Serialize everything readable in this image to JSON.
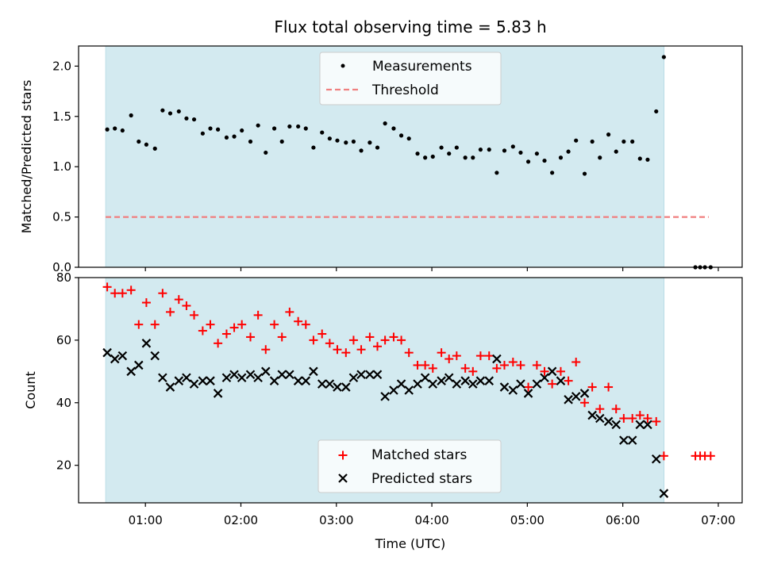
{
  "colors": {
    "shade": "#d3eaf0",
    "threshold": "#f08080",
    "matched": "#ff0000",
    "predicted": "#000000",
    "measurement": "#000000"
  },
  "chart_data": [
    {
      "type": "scatter",
      "title": "Flux total observing time = 5.83 h",
      "xlabel": "",
      "ylabel": "Matched/Predicted stars",
      "x_unit": "hours UTC",
      "xlim": [
        0.3,
        7.25
      ],
      "ylim": [
        0,
        2.2
      ],
      "yticks": [
        "0.0",
        "0.5",
        "1.0",
        "1.5",
        "2.0"
      ],
      "yticks_values": [
        0,
        0.5,
        1.0,
        1.5,
        2.0
      ],
      "shaded_span": [
        0.583,
        6.433
      ],
      "legend": {
        "location": "top-center",
        "entries": [
          "Measurements",
          "Threshold"
        ]
      },
      "threshold": {
        "name": "Threshold",
        "y": 0.5,
        "x_range": [
          0.583,
          6.9
        ]
      },
      "series": [
        {
          "name": "Measurements",
          "points": [
            [
              0.6,
              1.37
            ],
            [
              0.68,
              1.38
            ],
            [
              0.76,
              1.36
            ],
            [
              0.85,
              1.51
            ],
            [
              0.93,
              1.25
            ],
            [
              1.01,
              1.22
            ],
            [
              1.1,
              1.18
            ],
            [
              1.18,
              1.56
            ],
            [
              1.26,
              1.53
            ],
            [
              1.35,
              1.55
            ],
            [
              1.43,
              1.48
            ],
            [
              1.51,
              1.47
            ],
            [
              1.6,
              1.33
            ],
            [
              1.68,
              1.38
            ],
            [
              1.76,
              1.37
            ],
            [
              1.85,
              1.29
            ],
            [
              1.93,
              1.3
            ],
            [
              2.01,
              1.36
            ],
            [
              2.1,
              1.25
            ],
            [
              2.18,
              1.41
            ],
            [
              2.26,
              1.14
            ],
            [
              2.35,
              1.38
            ],
            [
              2.43,
              1.25
            ],
            [
              2.51,
              1.4
            ],
            [
              2.6,
              1.4
            ],
            [
              2.68,
              1.38
            ],
            [
              2.76,
              1.19
            ],
            [
              2.85,
              1.34
            ],
            [
              2.93,
              1.28
            ],
            [
              3.01,
              1.26
            ],
            [
              3.1,
              1.24
            ],
            [
              3.18,
              1.25
            ],
            [
              3.26,
              1.16
            ],
            [
              3.35,
              1.24
            ],
            [
              3.43,
              1.19
            ],
            [
              3.51,
              1.43
            ],
            [
              3.6,
              1.38
            ],
            [
              3.68,
              1.31
            ],
            [
              3.76,
              1.28
            ],
            [
              3.85,
              1.13
            ],
            [
              3.93,
              1.09
            ],
            [
              4.01,
              1.1
            ],
            [
              4.1,
              1.19
            ],
            [
              4.18,
              1.13
            ],
            [
              4.26,
              1.19
            ],
            [
              4.35,
              1.09
            ],
            [
              4.43,
              1.09
            ],
            [
              4.51,
              1.17
            ],
            [
              4.6,
              1.17
            ],
            [
              4.68,
              0.94
            ],
            [
              4.76,
              1.16
            ],
            [
              4.85,
              1.2
            ],
            [
              4.93,
              1.14
            ],
            [
              5.01,
              1.05
            ],
            [
              5.1,
              1.13
            ],
            [
              5.18,
              1.06
            ],
            [
              5.26,
              0.94
            ],
            [
              5.35,
              1.09
            ],
            [
              5.43,
              1.15
            ],
            [
              5.51,
              1.26
            ],
            [
              5.6,
              0.93
            ],
            [
              5.68,
              1.25
            ],
            [
              5.76,
              1.09
            ],
            [
              5.85,
              1.32
            ],
            [
              5.93,
              1.15
            ],
            [
              6.01,
              1.25
            ],
            [
              6.1,
              1.25
            ],
            [
              6.18,
              1.08
            ],
            [
              6.26,
              1.07
            ],
            [
              6.35,
              1.55
            ],
            [
              6.43,
              2.09
            ],
            [
              6.76,
              0.0
            ],
            [
              6.81,
              0.0
            ],
            [
              6.86,
              0.0
            ],
            [
              6.92,
              0.0
            ]
          ]
        }
      ]
    },
    {
      "type": "scatter",
      "title": "",
      "xlabel": "Time (UTC)",
      "ylabel": "Count",
      "x_unit": "hours UTC",
      "xlim": [
        0.3,
        7.25
      ],
      "ylim": [
        8,
        80
      ],
      "yticks": [
        "20",
        "40",
        "60",
        "80"
      ],
      "yticks_values": [
        20,
        40,
        60,
        80
      ],
      "xticks": [
        "01:00",
        "02:00",
        "03:00",
        "04:00",
        "05:00",
        "06:00",
        "07:00"
      ],
      "xticks_values": [
        1,
        2,
        3,
        4,
        5,
        6,
        7
      ],
      "shaded_span": [
        0.583,
        6.433
      ],
      "legend": {
        "location": "bottom-center",
        "entries": [
          "Matched stars",
          "Predicted stars"
        ]
      },
      "series": [
        {
          "name": "Matched stars",
          "marker": "+",
          "points": [
            [
              0.6,
              77
            ],
            [
              0.68,
              75
            ],
            [
              0.76,
              75
            ],
            [
              0.85,
              76
            ],
            [
              0.93,
              65
            ],
            [
              1.01,
              72
            ],
            [
              1.1,
              65
            ],
            [
              1.18,
              75
            ],
            [
              1.26,
              69
            ],
            [
              1.35,
              73
            ],
            [
              1.43,
              71
            ],
            [
              1.51,
              68
            ],
            [
              1.6,
              63
            ],
            [
              1.68,
              65
            ],
            [
              1.76,
              59
            ],
            [
              1.85,
              62
            ],
            [
              1.93,
              64
            ],
            [
              2.01,
              65
            ],
            [
              2.1,
              61
            ],
            [
              2.18,
              68
            ],
            [
              2.26,
              57
            ],
            [
              2.35,
              65
            ],
            [
              2.43,
              61
            ],
            [
              2.51,
              69
            ],
            [
              2.6,
              66
            ],
            [
              2.68,
              65
            ],
            [
              2.76,
              60
            ],
            [
              2.85,
              62
            ],
            [
              2.93,
              59
            ],
            [
              3.01,
              57
            ],
            [
              3.1,
              56
            ],
            [
              3.18,
              60
            ],
            [
              3.26,
              57
            ],
            [
              3.35,
              61
            ],
            [
              3.43,
              58
            ],
            [
              3.51,
              60
            ],
            [
              3.6,
              61
            ],
            [
              3.68,
              60
            ],
            [
              3.76,
              56
            ],
            [
              3.85,
              52
            ],
            [
              3.93,
              52
            ],
            [
              4.01,
              51
            ],
            [
              4.1,
              56
            ],
            [
              4.18,
              54
            ],
            [
              4.26,
              55
            ],
            [
              4.35,
              51
            ],
            [
              4.43,
              50
            ],
            [
              4.51,
              55
            ],
            [
              4.6,
              55
            ],
            [
              4.68,
              51
            ],
            [
              4.76,
              52
            ],
            [
              4.85,
              53
            ],
            [
              4.93,
              52
            ],
            [
              5.01,
              45
            ],
            [
              5.1,
              52
            ],
            [
              5.18,
              50
            ],
            [
              5.26,
              46
            ],
            [
              5.35,
              50
            ],
            [
              5.43,
              47
            ],
            [
              5.51,
              53
            ],
            [
              5.6,
              40
            ],
            [
              5.68,
              45
            ],
            [
              5.76,
              38
            ],
            [
              5.85,
              45
            ],
            [
              5.93,
              38
            ],
            [
              6.01,
              35
            ],
            [
              6.1,
              35
            ],
            [
              6.18,
              36
            ],
            [
              6.26,
              35
            ],
            [
              6.35,
              34
            ],
            [
              6.43,
              23
            ],
            [
              6.76,
              23
            ],
            [
              6.81,
              23
            ],
            [
              6.86,
              23
            ],
            [
              6.92,
              23
            ]
          ]
        },
        {
          "name": "Predicted stars",
          "marker": "x",
          "points": [
            [
              0.6,
              56
            ],
            [
              0.68,
              54
            ],
            [
              0.76,
              55
            ],
            [
              0.85,
              50
            ],
            [
              0.93,
              52
            ],
            [
              1.01,
              59
            ],
            [
              1.1,
              55
            ],
            [
              1.18,
              48
            ],
            [
              1.26,
              45
            ],
            [
              1.35,
              47
            ],
            [
              1.43,
              48
            ],
            [
              1.51,
              46
            ],
            [
              1.6,
              47
            ],
            [
              1.68,
              47
            ],
            [
              1.76,
              43
            ],
            [
              1.85,
              48
            ],
            [
              1.93,
              49
            ],
            [
              2.01,
              48
            ],
            [
              2.1,
              49
            ],
            [
              2.18,
              48
            ],
            [
              2.26,
              50
            ],
            [
              2.35,
              47
            ],
            [
              2.43,
              49
            ],
            [
              2.51,
              49
            ],
            [
              2.6,
              47
            ],
            [
              2.68,
              47
            ],
            [
              2.76,
              50
            ],
            [
              2.85,
              46
            ],
            [
              2.93,
              46
            ],
            [
              3.01,
              45
            ],
            [
              3.1,
              45
            ],
            [
              3.18,
              48
            ],
            [
              3.26,
              49
            ],
            [
              3.35,
              49
            ],
            [
              3.43,
              49
            ],
            [
              3.51,
              42
            ],
            [
              3.6,
              44
            ],
            [
              3.68,
              46
            ],
            [
              3.76,
              44
            ],
            [
              3.85,
              46
            ],
            [
              3.93,
              48
            ],
            [
              4.01,
              46
            ],
            [
              4.1,
              47
            ],
            [
              4.18,
              48
            ],
            [
              4.26,
              46
            ],
            [
              4.35,
              47
            ],
            [
              4.43,
              46
            ],
            [
              4.51,
              47
            ],
            [
              4.6,
              47
            ],
            [
              4.68,
              54
            ],
            [
              4.76,
              45
            ],
            [
              4.85,
              44
            ],
            [
              4.93,
              46
            ],
            [
              5.01,
              43
            ],
            [
              5.1,
              46
            ],
            [
              5.18,
              48
            ],
            [
              5.26,
              50
            ],
            [
              5.35,
              47
            ],
            [
              5.43,
              41
            ],
            [
              5.51,
              42
            ],
            [
              5.6,
              43
            ],
            [
              5.68,
              36
            ],
            [
              5.76,
              35
            ],
            [
              5.85,
              34
            ],
            [
              5.93,
              33
            ],
            [
              6.01,
              28
            ],
            [
              6.1,
              28
            ],
            [
              6.18,
              33
            ],
            [
              6.26,
              33
            ],
            [
              6.35,
              22
            ],
            [
              6.43,
              11
            ]
          ]
        }
      ]
    }
  ]
}
